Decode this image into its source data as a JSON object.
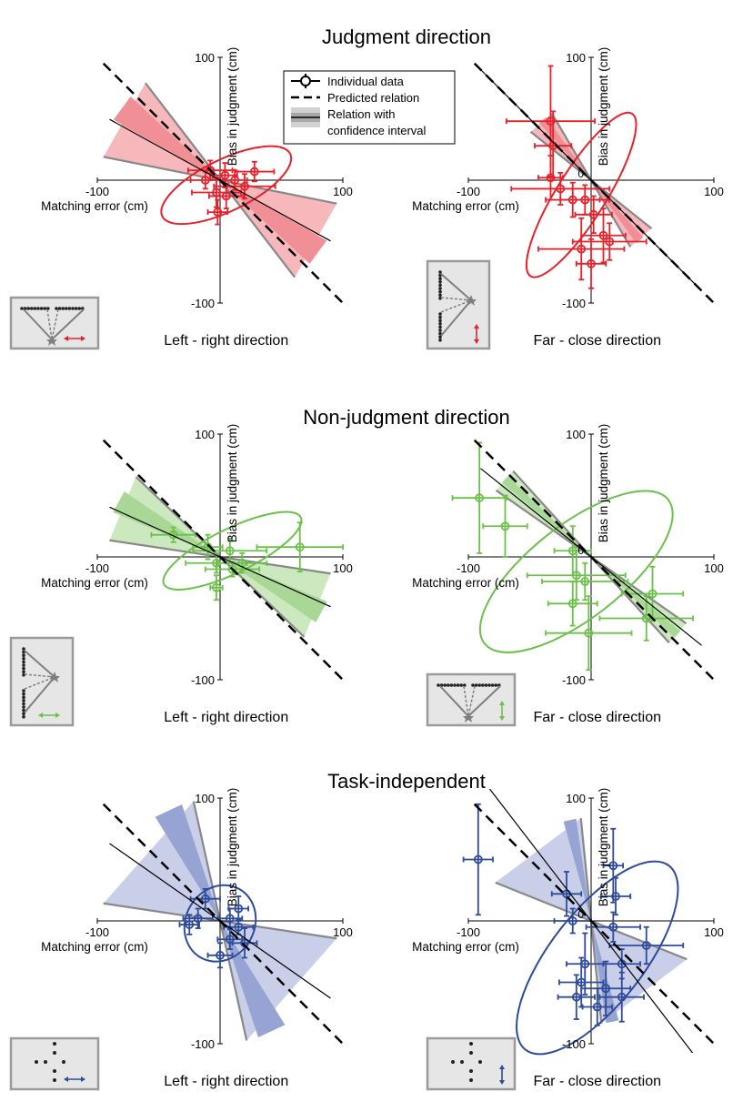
{
  "colors": {
    "judgment": "#e8202a",
    "judgment_light": "#f7b8bc",
    "judgment_mid": "#f08f95",
    "nonjudgment": "#6cc04a",
    "nonjudgment_light": "#cbe8be",
    "nonjudgment_mid": "#a9d896",
    "task_independent": "#2e4b9b",
    "task_independent_light": "#c9cfe8",
    "task_independent_mid": "#97a3d2",
    "predicted": "#000000",
    "cone_edge": "#888888",
    "inset_bg": "#e6e6e6"
  },
  "legend": {
    "individual": "Individual data",
    "predicted": "Predicted relation",
    "relation_line1": "Relation with",
    "relation_line2": "confidence interval"
  },
  "axis_labels": {
    "x": "Matching error (cm)",
    "y": "Bias in judgment (cm)",
    "tick_neg": "-100",
    "tick_pos": "100",
    "tick_zero": "0"
  },
  "rows": [
    {
      "title": "Judgment direction"
    },
    {
      "title": "Non-judgment direction"
    },
    {
      "title": "Task-independent"
    }
  ],
  "chart_data": [
    {
      "type": "scatter",
      "row": 0,
      "col": 0,
      "caption": "Left - right direction",
      "color_key": "judgment",
      "inset": "lr-judgment",
      "xlim": [
        -100,
        100
      ],
      "ylim": [
        -100,
        100
      ],
      "points": [
        {
          "x": -8,
          "y": 8,
          "xerr": 18,
          "yerr": 8
        },
        {
          "x": 4,
          "y": 4,
          "xerr": 10,
          "yerr": 10
        },
        {
          "x": -12,
          "y": 0,
          "xerr": 12,
          "yerr": 7
        },
        {
          "x": 12,
          "y": 0,
          "xerr": 10,
          "yerr": 8
        },
        {
          "x": 28,
          "y": 7,
          "xerr": 16,
          "yerr": 8
        },
        {
          "x": 20,
          "y": -5,
          "xerr": 25,
          "yerr": 10
        },
        {
          "x": -3,
          "y": -10,
          "xerr": 20,
          "yerr": 12
        },
        {
          "x": 5,
          "y": -13,
          "xerr": 14,
          "yerr": 10
        },
        {
          "x": -2,
          "y": -26,
          "xerr": 8,
          "yerr": 10
        }
      ],
      "slope": -0.55,
      "cone_lo": -0.2,
      "cone_hi": -1.3,
      "cone_extent": 95,
      "ellipse": {
        "cx": 5,
        "cy": -4,
        "rx": 58,
        "ry": 21,
        "angle_deg": -26
      }
    },
    {
      "type": "scatter",
      "row": 0,
      "col": 1,
      "caption": "Far - close direction",
      "color_key": "judgment",
      "inset": "fc-judgment",
      "xlim": [
        -100,
        100
      ],
      "ylim": [
        -100,
        100
      ],
      "points": [
        {
          "x": -33,
          "y": 48,
          "xerr": 36,
          "yerr": 45
        },
        {
          "x": -31,
          "y": 28,
          "xerr": 15,
          "yerr": 28
        },
        {
          "x": -33,
          "y": 2,
          "xerr": 10,
          "yerr": 18
        },
        {
          "x": -25,
          "y": -7,
          "xerr": 40,
          "yerr": 13
        },
        {
          "x": -15,
          "y": -16,
          "xerr": 22,
          "yerr": 14
        },
        {
          "x": -5,
          "y": -16,
          "xerr": 20,
          "yerr": 12
        },
        {
          "x": 2,
          "y": -28,
          "xerr": 15,
          "yerr": 15
        },
        {
          "x": 10,
          "y": -45,
          "xerr": 18,
          "yerr": 22
        },
        {
          "x": 15,
          "y": -50,
          "xerr": 30,
          "yerr": 15
        },
        {
          "x": -8,
          "y": -56,
          "xerr": 35,
          "yerr": 25
        },
        {
          "x": 0,
          "y": -68,
          "xerr": 12,
          "yerr": 20
        }
      ],
      "slope": -1.0,
      "cone_lo": -0.8,
      "cone_hi": -1.7,
      "cone_extent": 60,
      "ellipse": {
        "cx": -8,
        "cy": -12,
        "rx": 78,
        "ry": 20,
        "angle_deg": -58
      }
    },
    {
      "type": "scatter",
      "row": 1,
      "col": 0,
      "caption": "Left - right direction",
      "color_key": "nonjudgment",
      "inset": "lr-nonjudgment",
      "xlim": [
        -100,
        100
      ],
      "ylim": [
        -100,
        100
      ],
      "points": [
        {
          "x": -38,
          "y": 18,
          "xerr": 18,
          "yerr": 6
        },
        {
          "x": -10,
          "y": 8,
          "xerr": 12,
          "yerr": 10
        },
        {
          "x": 8,
          "y": 5,
          "xerr": 30,
          "yerr": 10
        },
        {
          "x": 18,
          "y": -5,
          "xerr": 20,
          "yerr": 8
        },
        {
          "x": 65,
          "y": 8,
          "xerr": 35,
          "yerr": 20
        },
        {
          "x": -3,
          "y": -5,
          "xerr": 25,
          "yerr": 8
        },
        {
          "x": -3,
          "y": -25,
          "xerr": 5,
          "yerr": 10
        },
        {
          "x": 10,
          "y": -10,
          "xerr": 22,
          "yerr": 6
        }
      ],
      "slope": -0.45,
      "cone_lo": -0.15,
      "cone_hi": -0.95,
      "cone_extent": 90,
      "ellipse": {
        "cx": 10,
        "cy": 5,
        "rx": 62,
        "ry": 18,
        "angle_deg": -26
      }
    },
    {
      "type": "scatter",
      "row": 1,
      "col": 1,
      "caption": "Far - close direction",
      "color_key": "nonjudgment",
      "inset": "fc-nonjudgment",
      "xlim": [
        -100,
        100
      ],
      "ylim": [
        -100,
        100
      ],
      "points": [
        {
          "x": -91,
          "y": 48,
          "xerr": 22,
          "yerr": 45
        },
        {
          "x": -70,
          "y": 25,
          "xerr": 18,
          "yerr": 25
        },
        {
          "x": -15,
          "y": 5,
          "xerr": 15,
          "yerr": 20
        },
        {
          "x": -12,
          "y": -15,
          "xerr": 40,
          "yerr": 20
        },
        {
          "x": -5,
          "y": -20,
          "xerr": 35,
          "yerr": 15
        },
        {
          "x": -15,
          "y": -38,
          "xerr": 20,
          "yerr": 18
        },
        {
          "x": 50,
          "y": -30,
          "xerr": 25,
          "yerr": 22
        },
        {
          "x": 45,
          "y": -50,
          "xerr": 38,
          "yerr": 18
        },
        {
          "x": -2,
          "y": -62,
          "xerr": 35,
          "yerr": 30
        }
      ],
      "slope": -0.8,
      "cone_lo": -0.7,
      "cone_hi": -1.1,
      "cone_extent": 90,
      "ellipse": {
        "cx": -12,
        "cy": -12,
        "rx": 95,
        "ry": 38,
        "angle_deg": -38
      }
    },
    {
      "type": "scatter",
      "row": 2,
      "col": 0,
      "caption": "Left - right direction",
      "color_key": "task_independent",
      "inset": "dots-lr",
      "xlim": [
        -100,
        100
      ],
      "ylim": [
        -100,
        100
      ],
      "points": [
        {
          "x": -12,
          "y": 18,
          "xerr": 12,
          "yerr": 8
        },
        {
          "x": 15,
          "y": 10,
          "xerr": 8,
          "yerr": 10
        },
        {
          "x": -18,
          "y": 2,
          "xerr": 12,
          "yerr": 8
        },
        {
          "x": 8,
          "y": 2,
          "xerr": 10,
          "yerr": 8
        },
        {
          "x": 15,
          "y": -5,
          "xerr": 12,
          "yerr": 6
        },
        {
          "x": -25,
          "y": -3,
          "xerr": 8,
          "yerr": 8
        },
        {
          "x": 8,
          "y": -15,
          "xerr": 10,
          "yerr": 8
        },
        {
          "x": 20,
          "y": -18,
          "xerr": 10,
          "yerr": 12
        },
        {
          "x": 0,
          "y": -28,
          "xerr": 10,
          "yerr": 10
        }
      ],
      "slope": -0.7,
      "cone_lo": -0.15,
      "cone_hi": -4.5,
      "cone_extent": 95,
      "ellipse": {
        "cx": 0,
        "cy": -2,
        "rx": 32,
        "ry": 28,
        "angle_deg": -60
      }
    },
    {
      "type": "scatter",
      "row": 2,
      "col": 1,
      "caption": "Far - close direction",
      "color_key": "task_independent",
      "inset": "dots-fc",
      "xlim": [
        -100,
        100
      ],
      "ylim": [
        -100,
        100
      ],
      "points": [
        {
          "x": -92,
          "y": 50,
          "xerr": 12,
          "yerr": 45
        },
        {
          "x": -20,
          "y": 22,
          "xerr": 12,
          "yerr": 18
        },
        {
          "x": 18,
          "y": 45,
          "xerr": 8,
          "yerr": 30
        },
        {
          "x": 20,
          "y": 20,
          "xerr": 12,
          "yerr": 15
        },
        {
          "x": -15,
          "y": 0,
          "xerr": 15,
          "yerr": 10
        },
        {
          "x": 18,
          "y": -5,
          "xerr": 22,
          "yerr": 12
        },
        {
          "x": 45,
          "y": -20,
          "xerr": 30,
          "yerr": 15
        },
        {
          "x": 25,
          "y": -35,
          "xerr": 15,
          "yerr": 12
        },
        {
          "x": -5,
          "y": -35,
          "xerr": 15,
          "yerr": 25
        },
        {
          "x": -8,
          "y": -50,
          "xerr": 18,
          "yerr": 20
        },
        {
          "x": 12,
          "y": -55,
          "xerr": 20,
          "yerr": 22
        },
        {
          "x": 25,
          "y": -62,
          "xerr": 18,
          "yerr": 20
        },
        {
          "x": -12,
          "y": -62,
          "xerr": 15,
          "yerr": 18
        },
        {
          "x": 5,
          "y": -70,
          "xerr": 12,
          "yerr": 15
        }
      ],
      "slope": -1.3,
      "cone_lo": -0.4,
      "cone_hi": -10,
      "cone_extent": 80,
      "ellipse": {
        "cx": 5,
        "cy": -30,
        "rx": 95,
        "ry": 38,
        "angle_deg": -52
      }
    }
  ]
}
